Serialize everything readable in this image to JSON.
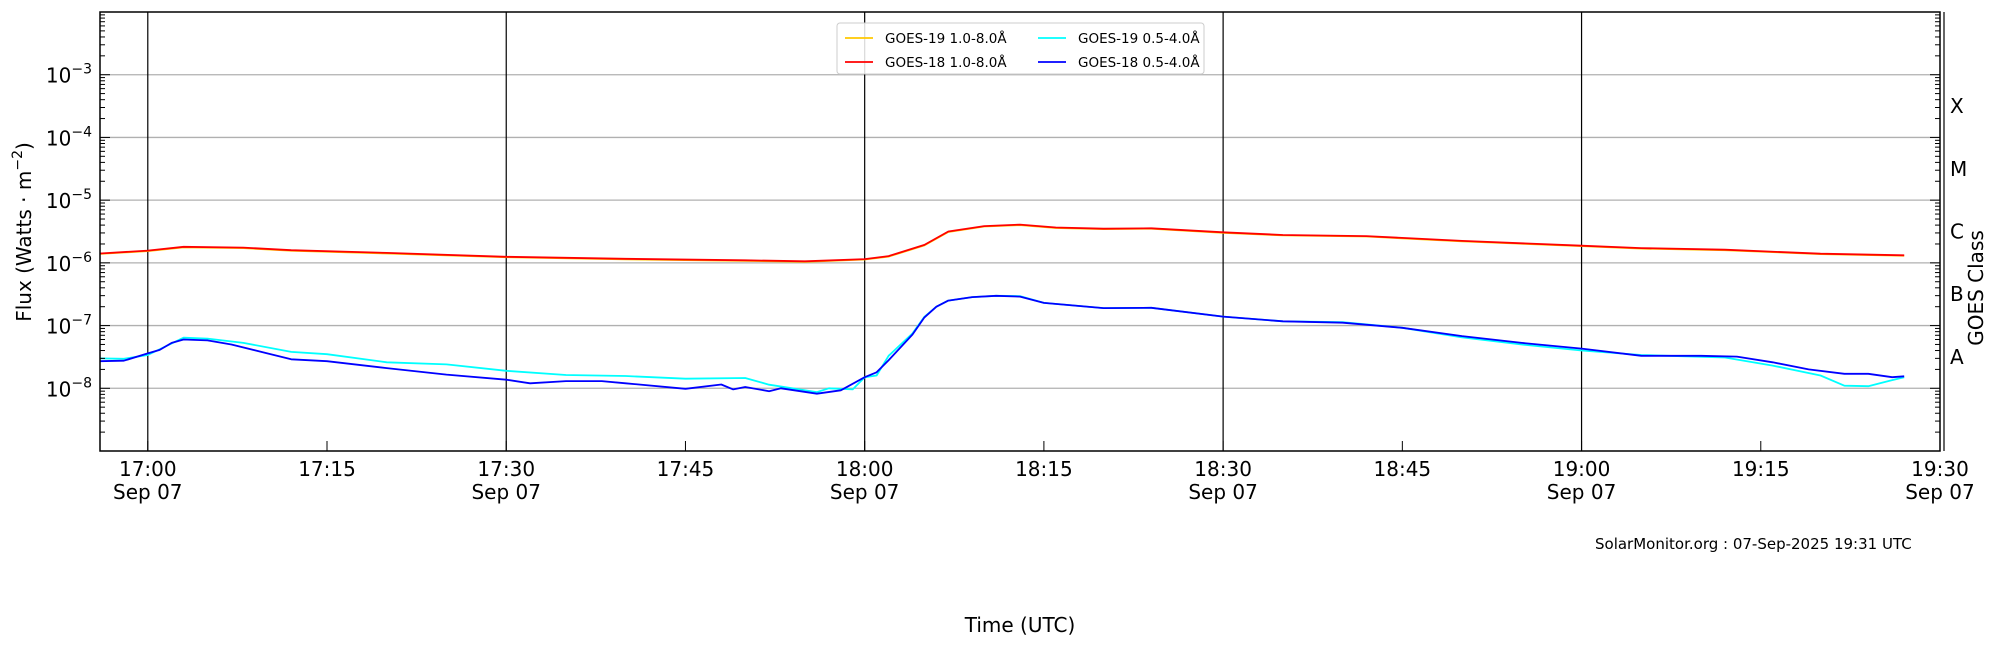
{
  "chart_data": {
    "type": "line",
    "title": "",
    "xlabel": "Time (UTC)",
    "ylabel": "Flux (Watts · m",
    "ylabel_exp": "−2",
    "ylabel_close": ")",
    "y_scale": "log",
    "ylim": [
      1e-09,
      0.01
    ],
    "xlim": [
      "16:56",
      "19:30"
    ],
    "grid": "horizontal at decades; vertical black lines at half hours",
    "xticks": [
      {
        "t": "17:00",
        "label": "17:00",
        "date": "Sep 07"
      },
      {
        "t": "17:15",
        "label": "17:15",
        "date": ""
      },
      {
        "t": "17:30",
        "label": "17:30",
        "date": "Sep 07"
      },
      {
        "t": "17:45",
        "label": "17:45",
        "date": ""
      },
      {
        "t": "18:00",
        "label": "18:00",
        "date": "Sep 07"
      },
      {
        "t": "18:15",
        "label": "18:15",
        "date": ""
      },
      {
        "t": "18:30",
        "label": "18:30",
        "date": "Sep 07"
      },
      {
        "t": "18:45",
        "label": "18:45",
        "date": ""
      },
      {
        "t": "19:00",
        "label": "19:00",
        "date": "Sep 07"
      },
      {
        "t": "19:15",
        "label": "19:15",
        "date": ""
      },
      {
        "t": "19:30",
        "label": "19:30",
        "date": "Sep 07"
      }
    ],
    "yticks": [
      {
        "exp": -8,
        "base": "10",
        "sup": "−8"
      },
      {
        "exp": -7,
        "base": "10",
        "sup": "−7"
      },
      {
        "exp": -6,
        "base": "10",
        "sup": "−6"
      },
      {
        "exp": -5,
        "base": "10",
        "sup": "−5"
      },
      {
        "exp": -4,
        "base": "10",
        "sup": "−4"
      },
      {
        "exp": -3,
        "base": "10",
        "sup": "−3"
      }
    ],
    "right_axis": {
      "label": "GOES Class",
      "classes": [
        {
          "label": "A",
          "log_mid": -7.5
        },
        {
          "label": "B",
          "log_mid": -6.5
        },
        {
          "label": "C",
          "log_mid": -5.5
        },
        {
          "label": "M",
          "log_mid": -4.5
        },
        {
          "label": "X",
          "log_mid": -3.5
        }
      ]
    },
    "legend_position": "top-center",
    "series": [
      {
        "name": "GOES-19 1.0-8.0Å",
        "color": "#ffc800",
        "points": [
          [
            "16:56",
            1.39e-06
          ],
          [
            "17:00",
            1.54e-06
          ],
          [
            "17:03",
            1.77e-06
          ],
          [
            "17:08",
            1.72e-06
          ],
          [
            "17:12",
            1.56e-06
          ],
          [
            "17:20",
            1.41e-06
          ],
          [
            "17:30",
            1.23e-06
          ],
          [
            "17:40",
            1.14e-06
          ],
          [
            "17:50",
            1.08e-06
          ],
          [
            "17:55",
            1.04e-06
          ],
          [
            "18:00",
            1.13e-06
          ],
          [
            "18:02",
            1.26e-06
          ],
          [
            "18:05",
            1.9e-06
          ],
          [
            "18:07",
            3.1e-06
          ],
          [
            "18:10",
            3.8e-06
          ],
          [
            "18:13",
            4e-06
          ],
          [
            "18:16",
            3.6e-06
          ],
          [
            "18:20",
            3.45e-06
          ],
          [
            "18:24",
            3.5e-06
          ],
          [
            "18:30",
            3.02e-06
          ],
          [
            "18:35",
            2.74e-06
          ],
          [
            "18:42",
            2.63e-06
          ],
          [
            "18:50",
            2.2e-06
          ],
          [
            "19:00",
            1.85e-06
          ],
          [
            "19:05",
            1.69e-06
          ],
          [
            "19:12",
            1.59e-06
          ],
          [
            "19:20",
            1.38e-06
          ],
          [
            "19:27",
            1.3e-06
          ]
        ]
      },
      {
        "name": "GOES-18 1.0-8.0Å",
        "color": "#ff0000",
        "points": [
          [
            "16:56",
            1.41e-06
          ],
          [
            "17:00",
            1.57e-06
          ],
          [
            "17:03",
            1.8e-06
          ],
          [
            "17:08",
            1.75e-06
          ],
          [
            "17:12",
            1.59e-06
          ],
          [
            "17:20",
            1.44e-06
          ],
          [
            "17:30",
            1.25e-06
          ],
          [
            "17:40",
            1.16e-06
          ],
          [
            "17:50",
            1.1e-06
          ],
          [
            "17:55",
            1.06e-06
          ],
          [
            "18:00",
            1.15e-06
          ],
          [
            "18:02",
            1.28e-06
          ],
          [
            "18:05",
            1.93e-06
          ],
          [
            "18:07",
            3.16e-06
          ],
          [
            "18:10",
            3.85e-06
          ],
          [
            "18:13",
            4.07e-06
          ],
          [
            "18:16",
            3.66e-06
          ],
          [
            "18:20",
            3.5e-06
          ],
          [
            "18:24",
            3.55e-06
          ],
          [
            "18:30",
            3.07e-06
          ],
          [
            "18:35",
            2.78e-06
          ],
          [
            "18:42",
            2.67e-06
          ],
          [
            "18:50",
            2.24e-06
          ],
          [
            "19:00",
            1.88e-06
          ],
          [
            "19:05",
            1.72e-06
          ],
          [
            "19:12",
            1.62e-06
          ],
          [
            "19:20",
            1.4e-06
          ],
          [
            "19:27",
            1.32e-06
          ]
        ]
      },
      {
        "name": "GOES-19 0.5-4.0Å",
        "color": "#00ffff",
        "points": [
          [
            "16:56",
            3e-08
          ],
          [
            "16:58",
            2.95e-08
          ],
          [
            "17:00",
            3.4e-08
          ],
          [
            "17:03",
            6.4e-08
          ],
          [
            "17:05",
            6.2e-08
          ],
          [
            "17:08",
            5.3e-08
          ],
          [
            "17:12",
            3.8e-08
          ],
          [
            "17:15",
            3.5e-08
          ],
          [
            "17:20",
            2.6e-08
          ],
          [
            "17:25",
            2.4e-08
          ],
          [
            "17:30",
            1.9e-08
          ],
          [
            "17:35",
            1.63e-08
          ],
          [
            "17:40",
            1.57e-08
          ],
          [
            "17:45",
            1.42e-08
          ],
          [
            "17:50",
            1.46e-08
          ],
          [
            "17:52",
            1.14e-08
          ],
          [
            "17:56",
            8.7e-09
          ],
          [
            "17:57",
            1e-08
          ],
          [
            "17:59",
            9.6e-09
          ],
          [
            "18:00",
            1.5e-08
          ],
          [
            "18:01",
            1.6e-08
          ],
          [
            "18:02",
            3.3e-08
          ],
          [
            "18:04",
            7.5e-08
          ],
          [
            "18:05",
            1.38e-07
          ],
          [
            "18:06",
            2e-07
          ],
          [
            "18:07",
            2.5e-07
          ],
          [
            "18:09",
            2.84e-07
          ],
          [
            "18:11",
            2.98e-07
          ],
          [
            "18:13",
            2.95e-07
          ],
          [
            "18:15",
            2.3e-07
          ],
          [
            "18:20",
            1.9e-07
          ],
          [
            "18:24",
            1.92e-07
          ],
          [
            "18:30",
            1.39e-07
          ],
          [
            "18:35",
            1.17e-07
          ],
          [
            "18:40",
            1.13e-07
          ],
          [
            "18:45",
            9.2e-08
          ],
          [
            "18:50",
            6.5e-08
          ],
          [
            "18:55",
            5e-08
          ],
          [
            "19:00",
            4e-08
          ],
          [
            "19:05",
            3.4e-08
          ],
          [
            "19:12",
            3.1e-08
          ],
          [
            "19:16",
            2.3e-08
          ],
          [
            "19:20",
            1.6e-08
          ],
          [
            "19:22",
            1.1e-08
          ],
          [
            "19:24",
            1.08e-08
          ],
          [
            "19:26",
            1.35e-08
          ],
          [
            "19:27",
            1.5e-08
          ]
        ]
      },
      {
        "name": "GOES-18 0.5-4.0Å",
        "color": "#0000ff",
        "points": [
          [
            "16:56",
            2.7e-08
          ],
          [
            "16:58",
            2.75e-08
          ],
          [
            "17:00",
            3.6e-08
          ],
          [
            "17:01",
            4.1e-08
          ],
          [
            "17:02",
            5.3e-08
          ],
          [
            "17:03",
            6e-08
          ],
          [
            "17:05",
            5.8e-08
          ],
          [
            "17:07",
            5e-08
          ],
          [
            "17:10",
            3.6e-08
          ],
          [
            "17:12",
            2.9e-08
          ],
          [
            "17:15",
            2.7e-08
          ],
          [
            "17:20",
            2.1e-08
          ],
          [
            "17:25",
            1.65e-08
          ],
          [
            "17:30",
            1.37e-08
          ],
          [
            "17:32",
            1.2e-08
          ],
          [
            "17:35",
            1.3e-08
          ],
          [
            "17:38",
            1.3e-08
          ],
          [
            "17:40",
            1.2e-08
          ],
          [
            "17:45",
            9.8e-09
          ],
          [
            "17:48",
            1.15e-08
          ],
          [
            "17:49",
            9.6e-09
          ],
          [
            "17:50",
            1.05e-08
          ],
          [
            "17:52",
            9e-09
          ],
          [
            "17:53",
            1e-08
          ],
          [
            "17:56",
            8.2e-09
          ],
          [
            "17:58",
            9.3e-09
          ],
          [
            "18:00",
            1.5e-08
          ],
          [
            "18:01",
            1.8e-08
          ],
          [
            "18:02",
            2.8e-08
          ],
          [
            "18:04",
            7.2e-08
          ],
          [
            "18:05",
            1.35e-07
          ],
          [
            "18:06",
            2e-07
          ],
          [
            "18:07",
            2.5e-07
          ],
          [
            "18:09",
            2.84e-07
          ],
          [
            "18:11",
            2.98e-07
          ],
          [
            "18:13",
            2.9e-07
          ],
          [
            "18:15",
            2.3e-07
          ],
          [
            "18:20",
            1.9e-07
          ],
          [
            "18:24",
            1.92e-07
          ],
          [
            "18:30",
            1.39e-07
          ],
          [
            "18:35",
            1.17e-07
          ],
          [
            "18:40",
            1.11e-07
          ],
          [
            "18:45",
            9.2e-08
          ],
          [
            "18:50",
            6.8e-08
          ],
          [
            "18:55",
            5.3e-08
          ],
          [
            "19:00",
            4.3e-08
          ],
          [
            "19:05",
            3.3e-08
          ],
          [
            "19:10",
            3.3e-08
          ],
          [
            "19:13",
            3.2e-08
          ],
          [
            "19:16",
            2.6e-08
          ],
          [
            "19:19",
            2e-08
          ],
          [
            "19:22",
            1.7e-08
          ],
          [
            "19:24",
            1.7e-08
          ],
          [
            "19:26",
            1.5e-08
          ],
          [
            "19:27",
            1.55e-08
          ]
        ]
      }
    ]
  },
  "watermark": "SolarMonitor.org : 07-Sep-2025 19:31 UTC"
}
